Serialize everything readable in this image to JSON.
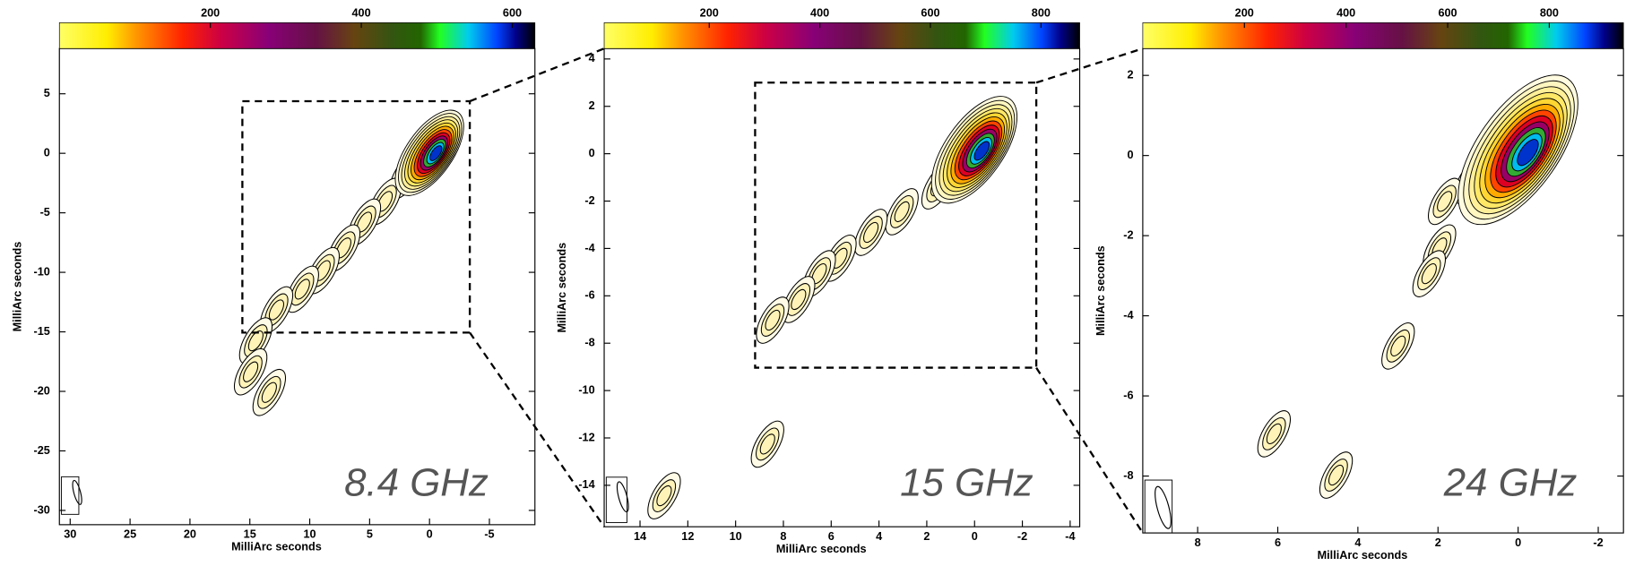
{
  "chart_data": [
    {
      "type": "contour",
      "annotation": "8.4 GHz",
      "xlabel": "MilliArc seconds",
      "ylabel": "MilliArc seconds",
      "xlim": [
        30.9,
        -8.8
      ],
      "xticks": [
        30,
        25,
        20,
        15,
        10,
        5,
        0,
        -5
      ],
      "ylim": [
        -31.2,
        8.8
      ],
      "yticks": [
        5,
        0,
        -5,
        -10,
        -15,
        -20,
        -25,
        -30
      ],
      "clim": [
        0,
        630
      ],
      "cticks": [
        200,
        400,
        600
      ]
    },
    {
      "type": "contour",
      "annotation": "15 GHz",
      "xlabel": "MilliArc seconds",
      "ylabel": "MilliArc seconds",
      "xlim": [
        15.5,
        -4.4
      ],
      "xticks": [
        14,
        12,
        10,
        8,
        6,
        4,
        2,
        0,
        -2,
        -4
      ],
      "ylim": [
        -15.75,
        4.44
      ],
      "yticks": [
        4,
        2,
        0,
        -2,
        -4,
        -6,
        -8,
        -10,
        -12,
        -14
      ],
      "clim": [
        10,
        870
      ],
      "cticks": [
        200,
        400,
        600,
        800
      ]
    },
    {
      "type": "contour",
      "annotation": "24 GHz",
      "xlabel": "MilliArc seconds",
      "ylabel": "MilliArc seconds",
      "xlim": [
        9.37,
        -2.63
      ],
      "xticks": [
        8,
        6,
        4,
        2,
        0,
        -2
      ],
      "ylim": [
        -9.42,
        2.67
      ],
      "yticks": [
        2,
        0,
        -2,
        -4,
        -6,
        -8
      ],
      "clim": [
        0,
        946
      ],
      "cticks": [
        200,
        400,
        600,
        800
      ]
    }
  ]
}
